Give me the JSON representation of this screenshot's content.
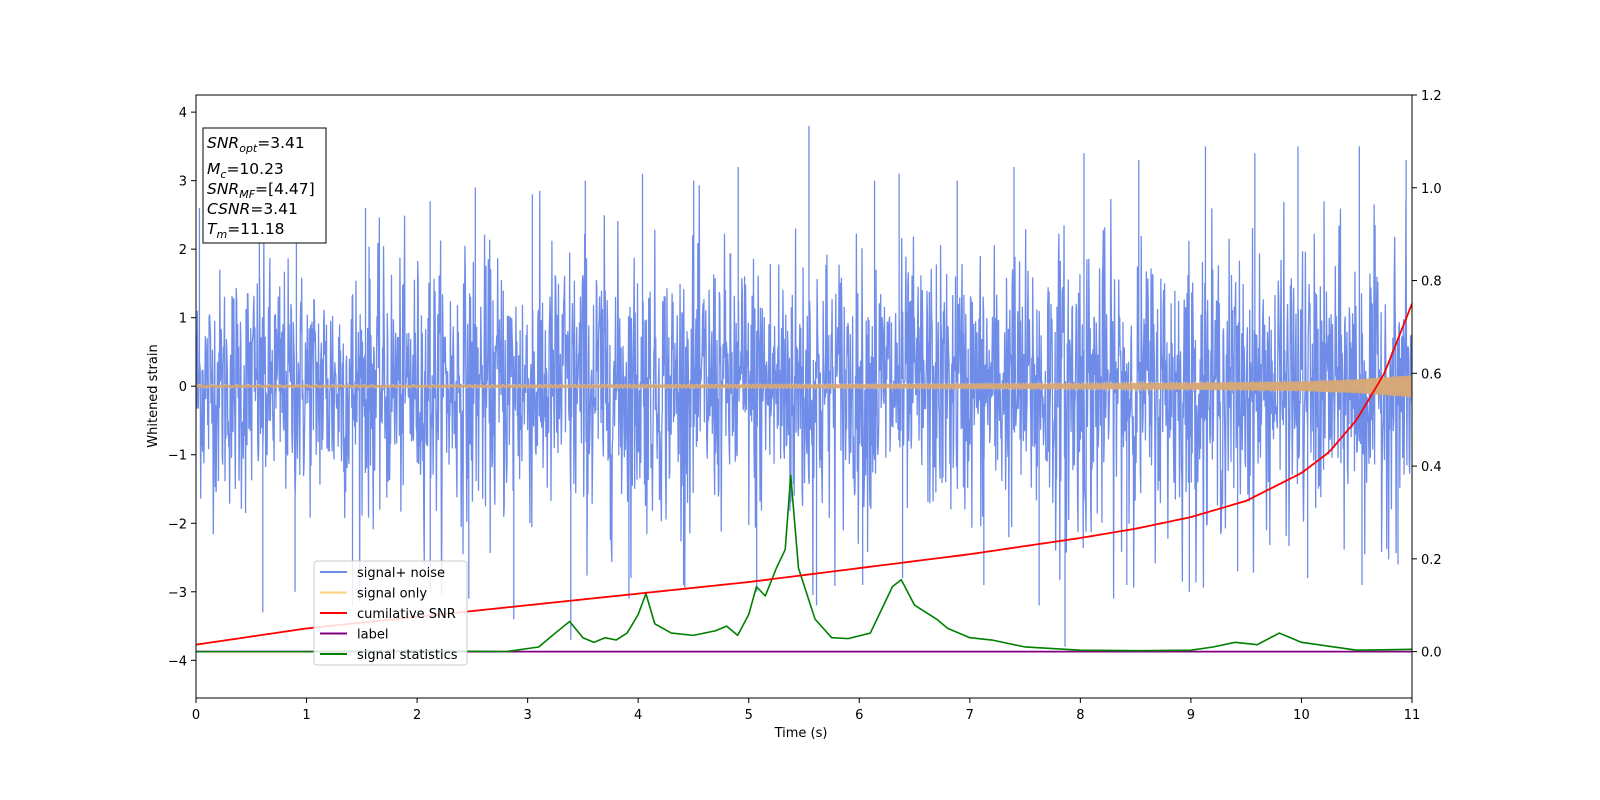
{
  "chart_data": {
    "type": "line",
    "xlabel": "Time (s)",
    "ylabel": "Whitened strain",
    "xlim": [
      0,
      11
    ],
    "ylim": [
      -4.55,
      4.25
    ],
    "y2lim": [
      -0.1,
      1.2
    ],
    "x_ticks": [
      "0",
      "1",
      "2",
      "3",
      "4",
      "5",
      "6",
      "7",
      "8",
      "9",
      "10",
      "11"
    ],
    "y_ticks": [
      "4",
      "3",
      "2",
      "1",
      "0",
      "−1",
      "−2",
      "−3",
      "−4"
    ],
    "y2_ticks": [
      "1.2",
      "1.0",
      "0.8",
      "0.6",
      "0.4",
      "0.2",
      "0.0"
    ],
    "grid": false,
    "legend_position": "lower-left",
    "legend": [
      {
        "label": "signal+ noise",
        "color": "#6f8de8"
      },
      {
        "label": "signal only",
        "color": "#ffcf80"
      },
      {
        "label": "cumilative SNR",
        "color": "#ff0000"
      },
      {
        "label": "label",
        "color": "#800080"
      },
      {
        "label": "signal statistics",
        "color": "#008000"
      }
    ],
    "annotation": {
      "lines": [
        {
          "var": "SNR",
          "sub": "opt",
          "value": "=3.41"
        },
        {
          "var": "M",
          "sub": "c",
          "value": "=10.23"
        },
        {
          "var": "SNR",
          "sub": "MF",
          "value": "=[4.47]"
        },
        {
          "var": "CSNR",
          "sub": "",
          "value": "=3.41"
        },
        {
          "var": "T",
          "sub": "m",
          "value": "=11.18"
        }
      ]
    },
    "series": [
      {
        "name": "signal+ noise",
        "color": "#6f8de8",
        "axis": "left",
        "envelope": {
          "x": [
            0,
            0.5,
            1,
            1.5,
            2,
            2.5,
            3,
            3.5,
            4,
            4.5,
            5,
            5.5,
            6,
            6.5,
            7,
            7.5,
            8,
            8.5,
            9,
            9.5,
            10,
            10.5,
            11
          ],
          "upper": [
            2.6,
            2.5,
            2.3,
            2.6,
            2.7,
            2.9,
            2.8,
            3.0,
            3.1,
            3.0,
            3.2,
            3.8,
            3.0,
            3.1,
            3.0,
            3.2,
            3.4,
            3.3,
            3.5,
            3.4,
            3.5,
            3.5,
            3.3
          ],
          "lower": [
            -2.4,
            -3.3,
            -3.0,
            -3.2,
            -3.0,
            -3.1,
            -3.4,
            -3.7,
            -3.1,
            -2.9,
            -3.0,
            -3.2,
            -2.9,
            -2.8,
            -2.9,
            -3.2,
            -3.8,
            -2.9,
            -3.0,
            -2.7,
            -2.8,
            -2.9,
            -2.6
          ]
        }
      },
      {
        "name": "signal only",
        "color": "#ffcf80",
        "axis": "left",
        "amplitude": {
          "x": [
            0,
            2,
            4,
            6,
            8,
            9,
            10,
            10.5,
            11
          ],
          "y": [
            0.02,
            0.02,
            0.025,
            0.03,
            0.04,
            0.05,
            0.07,
            0.1,
            0.16
          ]
        }
      },
      {
        "name": "cumilative SNR",
        "color": "#ff0000",
        "axis": "right",
        "x": [
          0,
          1,
          2,
          3,
          4,
          5,
          6,
          7,
          8,
          8.5,
          9,
          9.5,
          10,
          10.25,
          10.5,
          10.75,
          11
        ],
        "y": [
          0.015,
          0.05,
          0.075,
          0.1,
          0.125,
          0.15,
          0.18,
          0.21,
          0.245,
          0.265,
          0.29,
          0.325,
          0.385,
          0.43,
          0.5,
          0.6,
          0.75
        ]
      },
      {
        "name": "label",
        "color": "#800080",
        "axis": "right",
        "x": [
          0,
          11
        ],
        "y": [
          0,
          0
        ]
      },
      {
        "name": "signal statistics",
        "color": "#008000",
        "axis": "right",
        "x": [
          0,
          1,
          2,
          2.8,
          3.1,
          3.25,
          3.38,
          3.5,
          3.6,
          3.7,
          3.8,
          3.9,
          4.0,
          4.07,
          4.15,
          4.3,
          4.5,
          4.7,
          4.8,
          4.9,
          5.0,
          5.07,
          5.15,
          5.25,
          5.33,
          5.38,
          5.45,
          5.6,
          5.75,
          5.9,
          6.1,
          6.2,
          6.3,
          6.38,
          6.5,
          6.7,
          6.8,
          7.0,
          7.2,
          7.5,
          8,
          8.5,
          9,
          9.2,
          9.4,
          9.6,
          9.8,
          10,
          10.5,
          11
        ],
        "y": [
          0.0,
          0.0,
          0.002,
          0.0,
          0.01,
          0.04,
          0.065,
          0.03,
          0.02,
          0.03,
          0.025,
          0.04,
          0.08,
          0.125,
          0.06,
          0.04,
          0.035,
          0.045,
          0.055,
          0.035,
          0.08,
          0.14,
          0.12,
          0.18,
          0.22,
          0.38,
          0.18,
          0.07,
          0.03,
          0.028,
          0.04,
          0.09,
          0.14,
          0.155,
          0.1,
          0.07,
          0.05,
          0.03,
          0.025,
          0.01,
          0.003,
          0.002,
          0.003,
          0.01,
          0.02,
          0.015,
          0.04,
          0.02,
          0.003,
          0.005
        ]
      }
    ]
  }
}
